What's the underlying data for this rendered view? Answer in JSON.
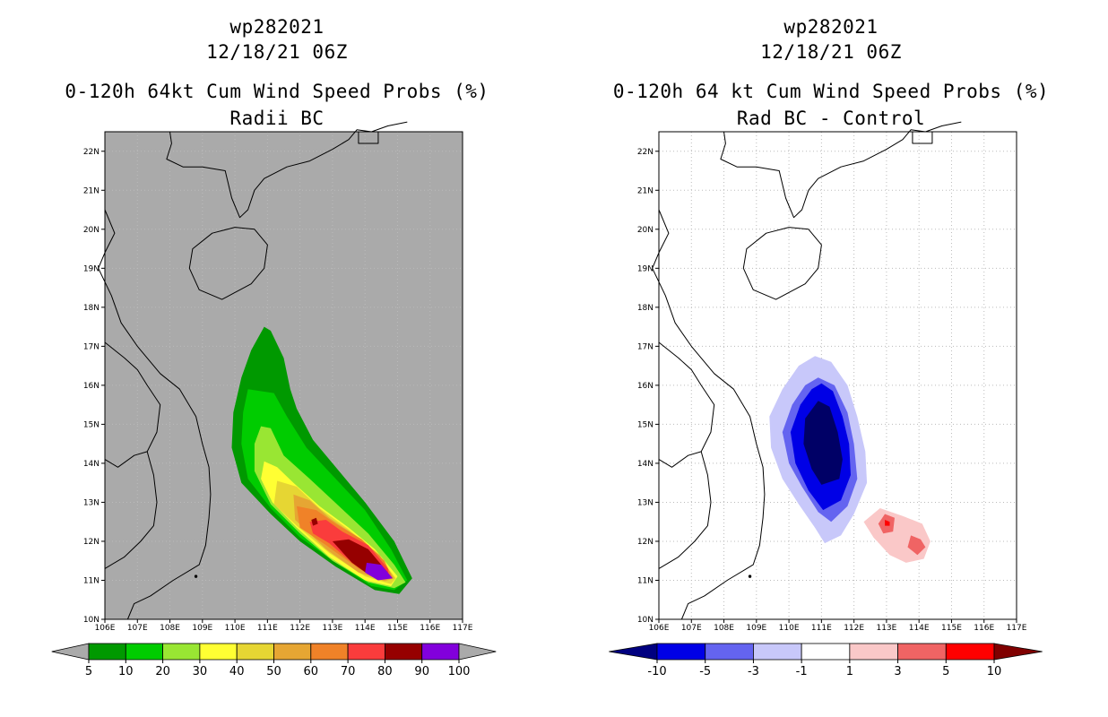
{
  "left": {
    "title1": "wp282021",
    "title2": "12/18/21 06Z",
    "title3": "0-120h 64kt Cum Wind Speed Probs (%)",
    "title4": "Radii BC",
    "colorbar": {
      "colors": [
        "#009900",
        "#00cc00",
        "#99e633",
        "#ffff33",
        "#e6d633",
        "#e6a633",
        "#f08228",
        "#fa3c3c",
        "#960000",
        "#8200dc"
      ],
      "labels": [
        "5",
        "10",
        "20",
        "30",
        "40",
        "50",
        "60",
        "70",
        "80",
        "90",
        "100"
      ]
    }
  },
  "right": {
    "title1": "wp282021",
    "title2": "12/18/21 06Z",
    "title3": "0-120h 64 kt Cum Wind Speed Probs (%)",
    "title4": "Rad BC - Control",
    "colorbar": {
      "colors": [
        "#0000e6",
        "#6464f0",
        "#c8c8fa",
        "#ffffff",
        "#fac8c8",
        "#f06464",
        "#ff0000"
      ],
      "labels": [
        "-10",
        "-5",
        "-3",
        "-1",
        "1",
        "3",
        "5",
        "10"
      ]
    }
  },
  "map": {
    "lat_labels": [
      "22N",
      "21N",
      "20N",
      "19N",
      "18N",
      "17N",
      "16N",
      "15N",
      "14N",
      "13N",
      "12N",
      "11N",
      "10N"
    ],
    "lon_labels": [
      "106E",
      "107E",
      "108E",
      "109E",
      "110E",
      "111E",
      "112E",
      "113E",
      "114E",
      "115E",
      "116E",
      "117E"
    ],
    "lon_range": [
      106,
      117
    ],
    "lat_range": [
      10,
      22.5
    ]
  },
  "colors": {
    "land_gray": "#aaaaaa",
    "grid": "#bbbbbb"
  }
}
